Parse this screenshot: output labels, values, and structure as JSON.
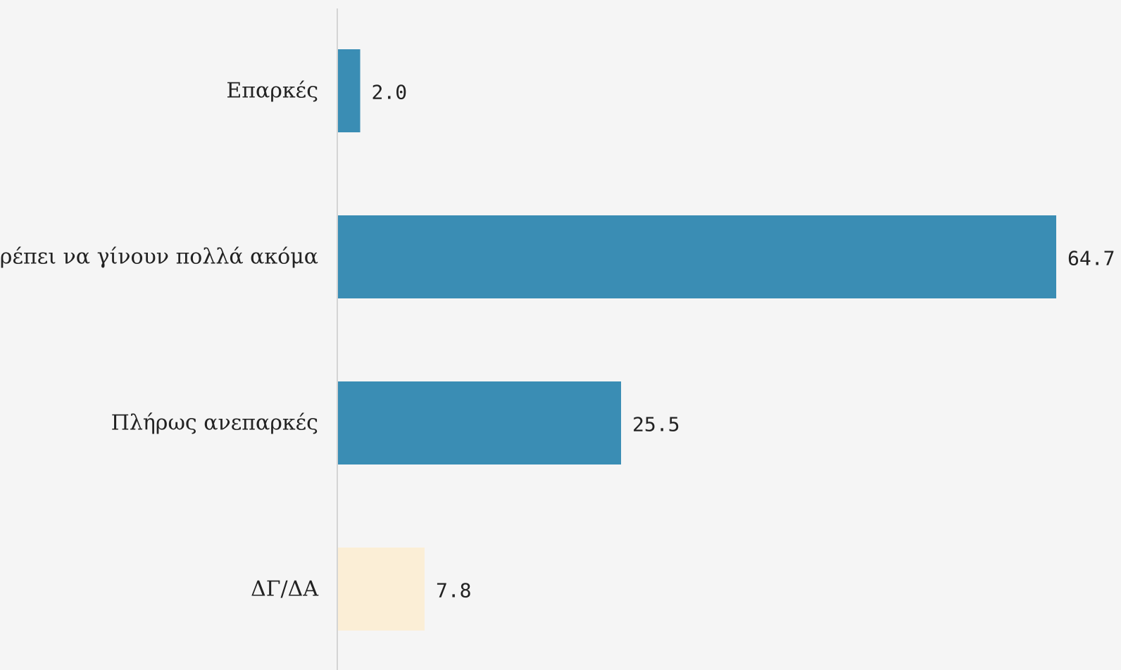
{
  "chart_data": {
    "type": "bar",
    "orientation": "horizontal",
    "categories": [
      "Επαρκές",
      "Πρέπει να γίνουν πολλά ακόμα",
      "Πλήρως ανεπαρκές",
      "ΔΓ/ΔΑ"
    ],
    "values": [
      2.0,
      64.7,
      25.5,
      7.8
    ],
    "value_labels": [
      "2.0",
      "64.7",
      "25.5",
      "7.8"
    ],
    "bar_colors": [
      "#3a8db4",
      "#3a8db4",
      "#3a8db4",
      "#fbeed6"
    ],
    "title": "",
    "xlabel": "",
    "ylabel": "",
    "xlim": [
      0,
      64.7
    ],
    "grid": false,
    "legend": "none"
  },
  "colors": {
    "background": "#f5f5f5",
    "axis_line": "#d4d4d4",
    "text": "#222222"
  }
}
